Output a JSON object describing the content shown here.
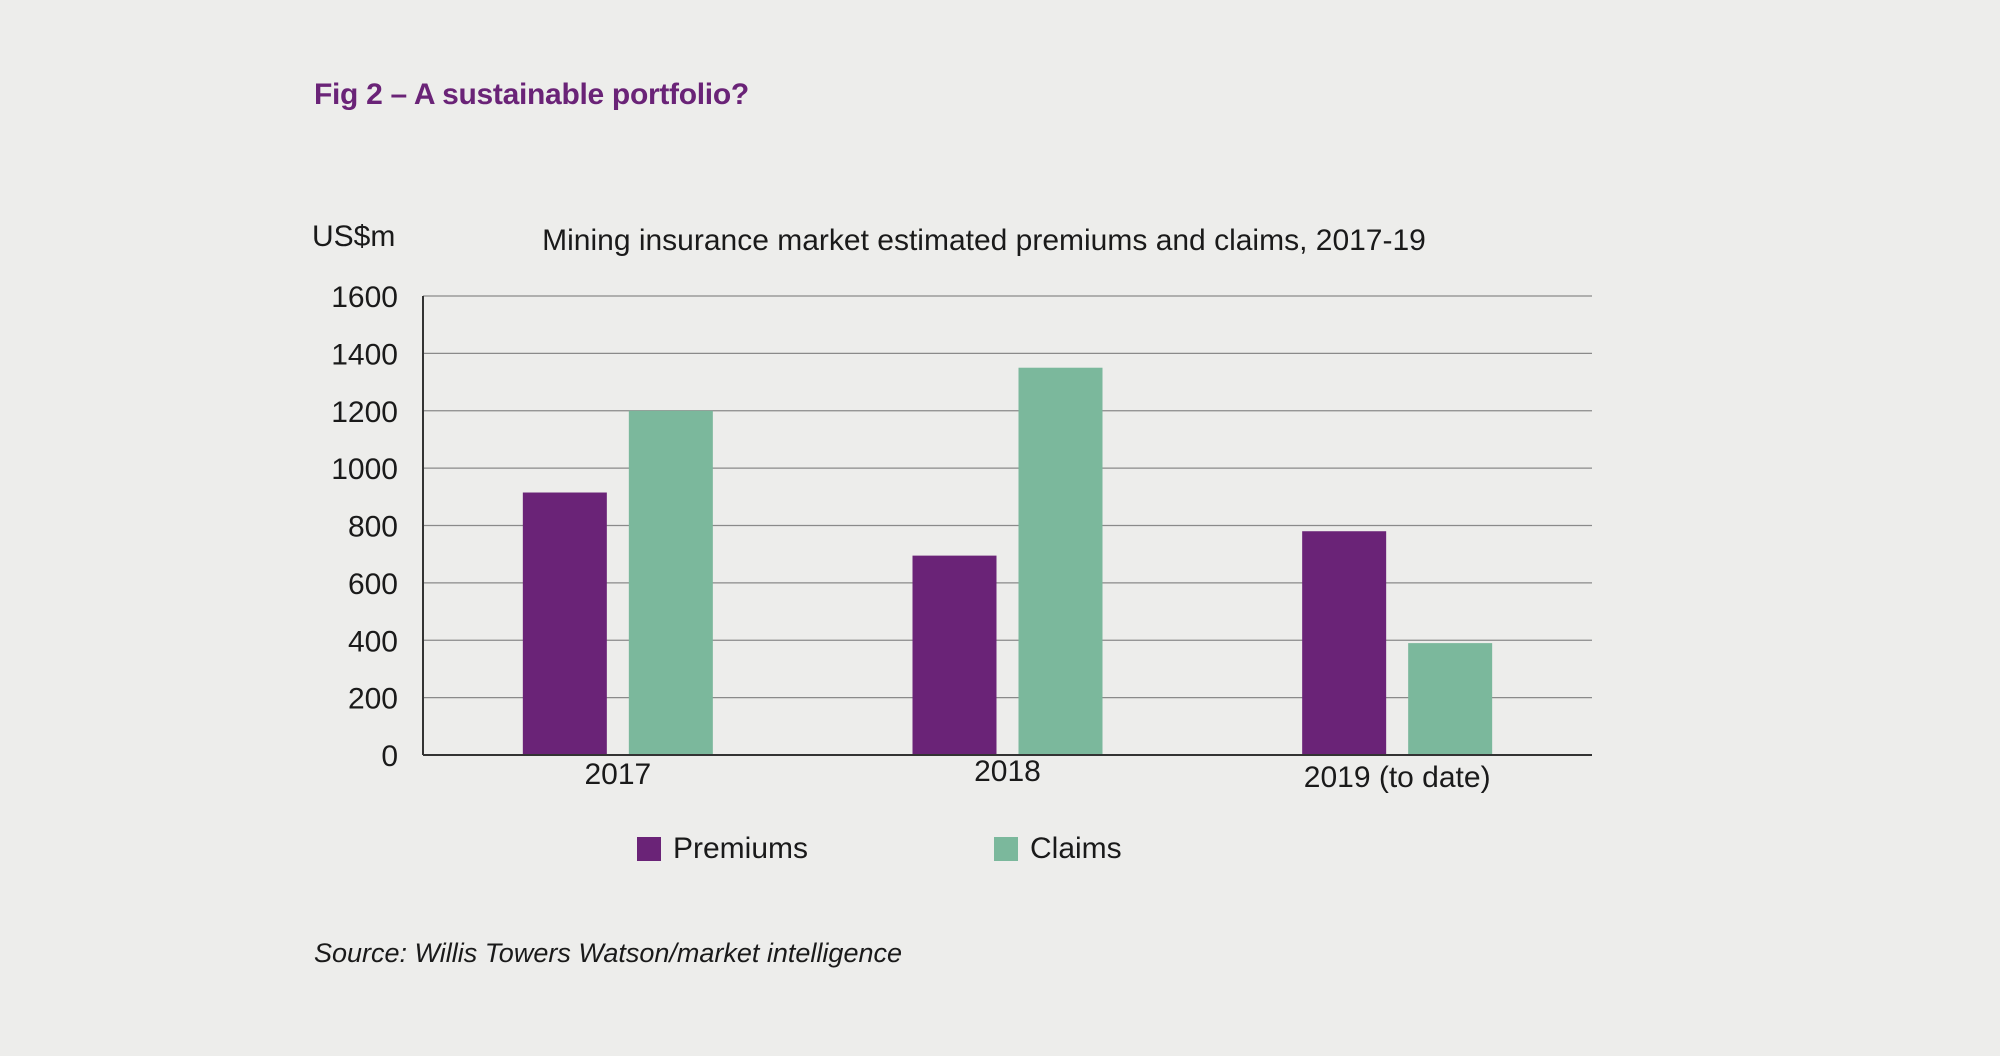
{
  "figure_title": "Fig 2 – A sustainable portfolio?",
  "source": "Source: Willis Towers Watson/market intelligence",
  "chart_data": {
    "type": "bar",
    "title": "Mining insurance market estimated premiums and claims, 2017-19",
    "ylabel": "US$m",
    "xlabel": "",
    "categories": [
      "2017",
      "2018",
      "2019 (to date)"
    ],
    "series": [
      {
        "name": "Premiums",
        "values": [
          915,
          695,
          780
        ],
        "color": "#6a2377"
      },
      {
        "name": "Claims",
        "values": [
          1200,
          1350,
          390
        ],
        "color": "#7bb89c"
      }
    ],
    "ylim": [
      0,
      1600
    ],
    "yticks": [
      "0",
      "200",
      "400",
      "600",
      "800",
      "1000",
      "1200",
      "1400",
      "1600"
    ],
    "grid": true,
    "legend_position": "bottom"
  }
}
